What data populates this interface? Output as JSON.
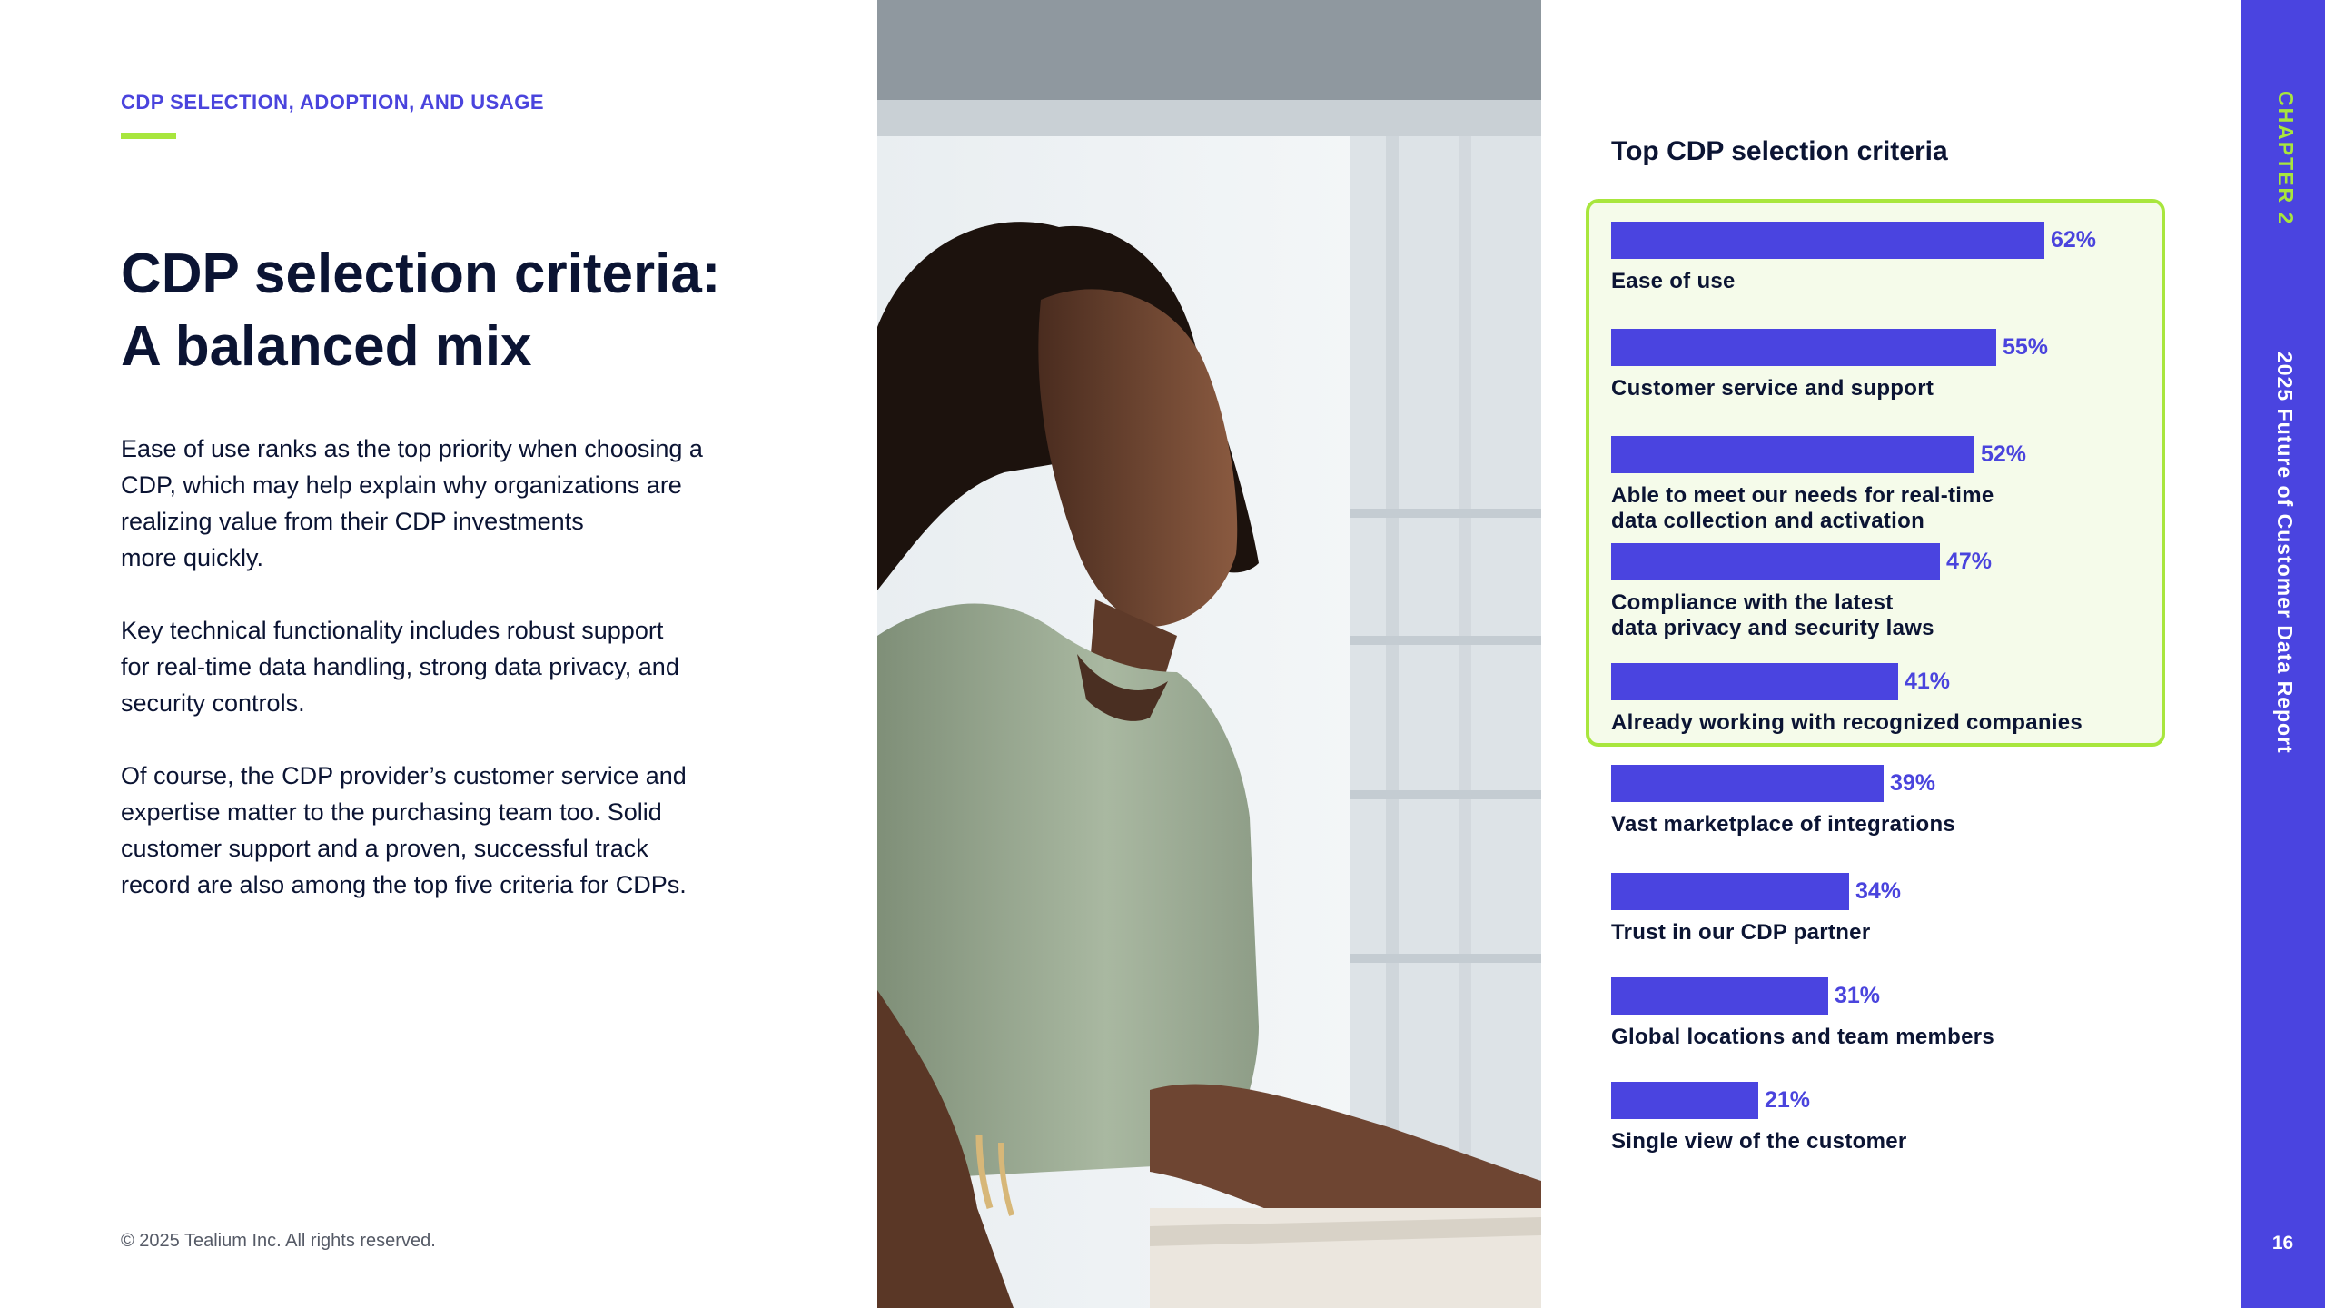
{
  "section": {
    "eyebrow": "CDP SELECTION, ADOPTION, AND USAGE",
    "headline_line1": "CDP selection criteria:",
    "headline_line2": "A balanced mix",
    "paragraphs": [
      "Ease of use ranks as the top priority when choosing a\nCDP,  which may help explain why organizations are\nrealizing value from their CDP investments\nmore quickly.",
      "Key technical functionality includes robust support\nfor real-time data handling, strong data privacy, and\nsecurity controls.",
      "Of course, the CDP provider’s customer service and\nexpertise matter to the purchasing team too. Solid\ncustomer support and a proven, successful track\nrecord are also among the top five criteria for CDPs."
    ],
    "copyright": "© 2025 Tealium Inc. All rights reserved."
  },
  "sidebar": {
    "chapter": "CHAPTER 2",
    "report_title": "2025 Future of Customer Data Report",
    "page_number": "16"
  },
  "colors": {
    "accent_purple": "#4a44e0",
    "accent_green": "#a8e63d",
    "highlight_bg": "#f5fbea",
    "text_dark": "#0b1433"
  },
  "chart_data": {
    "type": "bar",
    "orientation": "horizontal",
    "title": "Top CDP selection criteria",
    "categories": [
      "Ease of use",
      "Customer service and support",
      "Able to meet our needs for real-time\ndata collection and activation",
      "Compliance with the latest\ndata privacy and security laws",
      "Already working with recognized companies",
      "Vast marketplace of integrations",
      "Trust in our CDP partner",
      "Global locations and team members",
      "Single view of the customer"
    ],
    "values": [
      62,
      55,
      52,
      47,
      41,
      39,
      34,
      31,
      21
    ],
    "value_labels": [
      "62%",
      "55%",
      "52%",
      "47%",
      "41%",
      "39%",
      "34%",
      "31%",
      "21%"
    ],
    "highlighted_top": 5,
    "xlim": [
      0,
      100
    ],
    "grid": false,
    "xlabel": "",
    "ylabel": ""
  }
}
